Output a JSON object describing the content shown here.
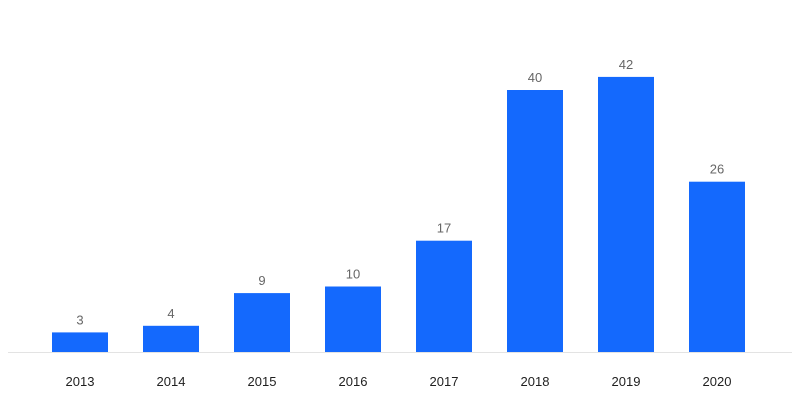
{
  "chart_data": {
    "type": "bar",
    "categories": [
      "2013",
      "2014",
      "2015",
      "2016",
      "2017",
      "2018",
      "2019",
      "2020"
    ],
    "values": [
      3,
      4,
      9,
      10,
      17,
      40,
      42,
      26
    ],
    "title": "",
    "xlabel": "",
    "ylabel": "",
    "ylim": [
      0,
      42
    ],
    "grid": false,
    "legend": "none",
    "data_labels": true,
    "colors": {
      "bar": "#1469fd",
      "baseline": "#e3e3e3",
      "value_label": "#666666",
      "tick_label": "#1f1f1f"
    }
  }
}
